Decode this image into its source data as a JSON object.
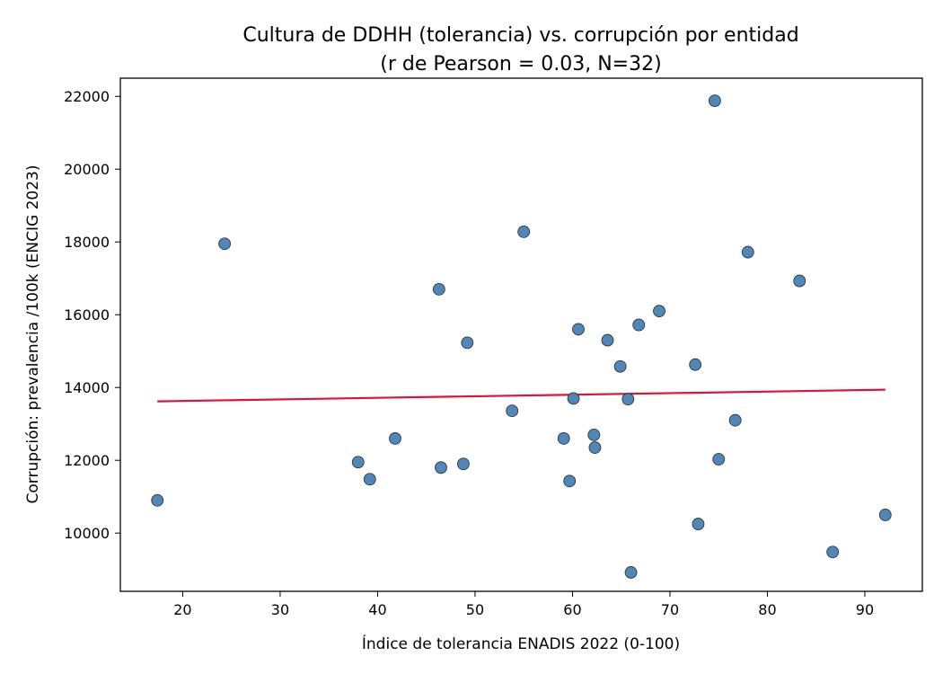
{
  "chart_data": {
    "type": "scatter",
    "title": "Cultura de DDHH (tolerancia) vs. corrupción por entidad",
    "subtitle": "(r de Pearson = 0.03, N=32)",
    "xlabel": "Índice de tolerancia ENADIS 2022 (0-100)",
    "ylabel": "Corrupción: prevalencia /100k (ENCIG 2023)",
    "xlim": [
      13.6,
      95.9
    ],
    "ylim": [
      8400,
      22500
    ],
    "xticks": [
      20,
      30,
      40,
      50,
      60,
      70,
      80,
      90
    ],
    "yticks": [
      10000,
      12000,
      14000,
      16000,
      18000,
      20000,
      22000
    ],
    "grid": false,
    "point_color": "#4682b4",
    "line_color": "#dc143c",
    "trend_line": {
      "x": [
        17.4,
        92.1
      ],
      "y": [
        13620,
        13940
      ]
    },
    "points": [
      {
        "x": 17.4,
        "y": 10900
      },
      {
        "x": 24.3,
        "y": 17950
      },
      {
        "x": 38.0,
        "y": 11950
      },
      {
        "x": 39.2,
        "y": 11480
      },
      {
        "x": 41.8,
        "y": 12600
      },
      {
        "x": 46.3,
        "y": 16700
      },
      {
        "x": 46.5,
        "y": 11800
      },
      {
        "x": 48.8,
        "y": 11900
      },
      {
        "x": 49.2,
        "y": 15230
      },
      {
        "x": 53.8,
        "y": 13360
      },
      {
        "x": 55.0,
        "y": 18280
      },
      {
        "x": 59.1,
        "y": 12600
      },
      {
        "x": 59.7,
        "y": 11430
      },
      {
        "x": 60.1,
        "y": 13700
      },
      {
        "x": 60.6,
        "y": 15600
      },
      {
        "x": 62.2,
        "y": 12700
      },
      {
        "x": 62.3,
        "y": 12350
      },
      {
        "x": 63.6,
        "y": 15300
      },
      {
        "x": 64.9,
        "y": 14580
      },
      {
        "x": 65.7,
        "y": 13680
      },
      {
        "x": 66.0,
        "y": 8920
      },
      {
        "x": 66.8,
        "y": 15720
      },
      {
        "x": 68.9,
        "y": 16100
      },
      {
        "x": 72.6,
        "y": 14630
      },
      {
        "x": 72.9,
        "y": 10250
      },
      {
        "x": 74.6,
        "y": 21880
      },
      {
        "x": 75.0,
        "y": 12030
      },
      {
        "x": 76.7,
        "y": 13100
      },
      {
        "x": 78.0,
        "y": 17720
      },
      {
        "x": 83.3,
        "y": 16930
      },
      {
        "x": 86.7,
        "y": 9480
      },
      {
        "x": 92.1,
        "y": 10500
      }
    ]
  }
}
